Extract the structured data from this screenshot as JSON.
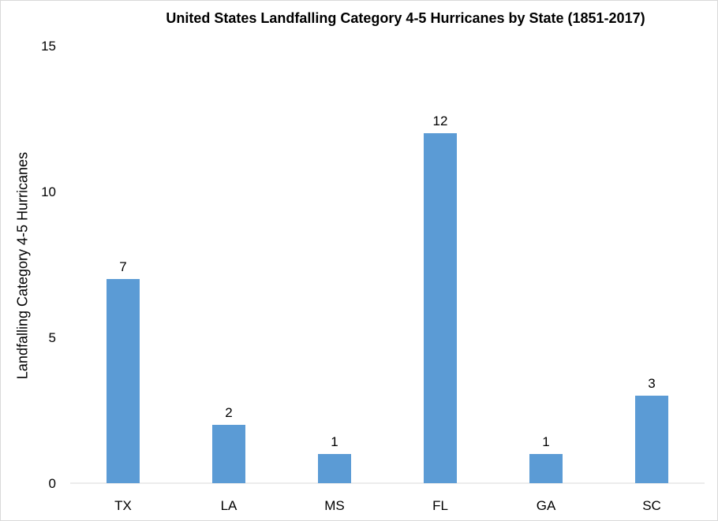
{
  "chart_data": {
    "type": "bar",
    "title": "United States Landfalling Category 4-5 Hurricanes by State (1851-2017)",
    "xlabel": "",
    "ylabel": "Landfalling Category 4-5 Hurricanes",
    "categories": [
      "TX",
      "LA",
      "MS",
      "FL",
      "GA",
      "SC"
    ],
    "values": [
      7,
      2,
      1,
      12,
      1,
      3
    ],
    "data_labels": [
      "7",
      "2",
      "1",
      "12",
      "1",
      "3"
    ],
    "ylim": [
      0,
      15
    ],
    "yticks": [
      0,
      5,
      10,
      15
    ],
    "ytick_labels": [
      "0",
      "5",
      "10",
      "15"
    ],
    "grid": false,
    "legend": "none",
    "bar_color": "#5b9bd5",
    "axis_color": "#d9d9d9"
  }
}
